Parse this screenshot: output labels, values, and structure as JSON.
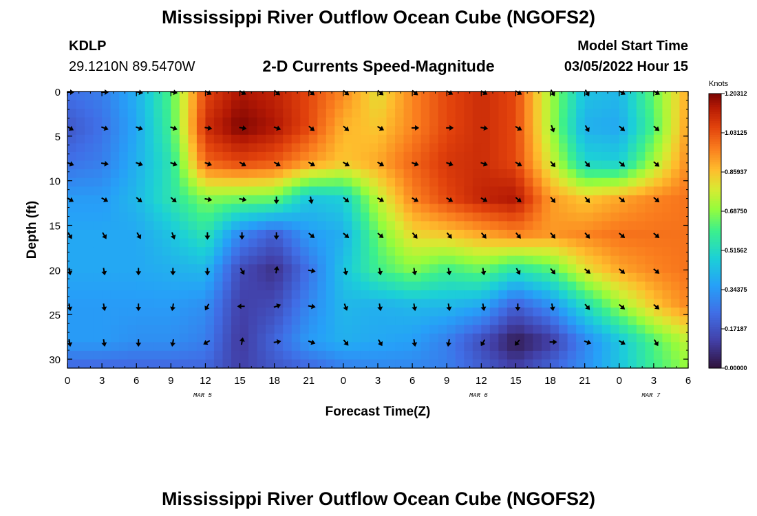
{
  "header": {
    "title": "Mississippi River Outflow Ocean Cube (NGOFS2)",
    "station": "KDLP",
    "coords": "29.1210N  89.5470W",
    "subtitle": "2-D Currents Speed-Magnitude",
    "model_start_label": "Model Start Time",
    "model_start_time": "03/05/2022 Hour 15"
  },
  "footer": {
    "title": "Mississippi River Outflow Ocean Cube (NGOFS2)"
  },
  "chart_data": {
    "type": "heatmap",
    "xlabel": "Forecast Time(Z)",
    "ylabel": "Depth (ft)",
    "x_tick_labels": [
      "0",
      "3",
      "6",
      "9",
      "12",
      "15",
      "18",
      "21",
      "0",
      "3",
      "6",
      "9",
      "12",
      "15",
      "18",
      "21",
      "0",
      "3",
      "6"
    ],
    "x_range_hours": [
      0,
      54
    ],
    "date_labels": [
      {
        "label": "MAR 5",
        "hour": 12
      },
      {
        "label": "MAR 6",
        "hour": 36
      },
      {
        "label": "MAR 7",
        "hour": 51
      }
    ],
    "y_ticks": [
      0,
      5,
      10,
      15,
      20,
      25,
      30
    ],
    "ylim": [
      0,
      31
    ],
    "y_inverted": true,
    "colorbar": {
      "label": "Knots",
      "min": 0.0,
      "max": 1.2031,
      "tick_labels": [
        "0.00000",
        "0.17187",
        "0.34375",
        "0.51562",
        "0.68750",
        "0.85937",
        "1.03125",
        "1.20312"
      ],
      "tick_values": [
        0.0,
        0.17187,
        0.34375,
        0.51562,
        0.6875,
        0.85937,
        1.03125,
        1.20312
      ]
    },
    "speed_grid": {
      "x_hours": [
        0,
        3,
        6,
        9,
        12,
        15,
        18,
        21,
        24,
        27,
        30,
        33,
        36,
        39,
        42,
        45,
        48,
        51,
        54
      ],
      "depths": [
        0,
        4,
        8,
        12,
        16,
        20,
        24,
        28,
        31
      ],
      "values": [
        [
          0.25,
          0.28,
          0.4,
          0.62,
          1.05,
          1.15,
          1.12,
          1.05,
          0.95,
          0.8,
          0.95,
          1.05,
          1.1,
          1.05,
          0.72,
          0.45,
          0.42,
          0.65,
          0.9
        ],
        [
          0.18,
          0.25,
          0.38,
          0.6,
          1.1,
          1.2,
          1.15,
          1.05,
          0.88,
          0.85,
          0.95,
          1.05,
          1.1,
          1.05,
          0.72,
          0.4,
          0.38,
          0.62,
          0.92
        ],
        [
          0.25,
          0.28,
          0.4,
          0.55,
          1.0,
          1.05,
          1.02,
          0.92,
          0.85,
          0.9,
          1.0,
          1.08,
          1.1,
          1.05,
          0.78,
          0.5,
          0.48,
          0.72,
          0.95
        ],
        [
          0.35,
          0.35,
          0.42,
          0.55,
          0.68,
          0.66,
          0.65,
          0.45,
          0.48,
          0.75,
          0.95,
          1.05,
          1.12,
          1.15,
          0.92,
          0.85,
          0.9,
          0.95,
          0.98
        ],
        [
          0.38,
          0.38,
          0.38,
          0.45,
          0.55,
          0.3,
          0.2,
          0.35,
          0.4,
          0.65,
          0.82,
          0.85,
          0.9,
          0.95,
          0.92,
          0.95,
          0.98,
          0.98,
          0.98
        ],
        [
          0.38,
          0.38,
          0.38,
          0.4,
          0.42,
          0.15,
          0.08,
          0.25,
          0.45,
          0.6,
          0.68,
          0.6,
          0.65,
          0.55,
          0.62,
          0.8,
          0.9,
          0.95,
          0.98
        ],
        [
          0.35,
          0.35,
          0.35,
          0.35,
          0.32,
          0.12,
          0.15,
          0.3,
          0.42,
          0.4,
          0.42,
          0.42,
          0.38,
          0.2,
          0.32,
          0.52,
          0.7,
          0.85,
          0.95
        ],
        [
          0.35,
          0.35,
          0.32,
          0.32,
          0.28,
          0.1,
          0.22,
          0.35,
          0.4,
          0.38,
          0.36,
          0.28,
          0.15,
          0.02,
          0.1,
          0.3,
          0.45,
          0.62,
          0.75
        ],
        [
          0.22,
          0.22,
          0.22,
          0.22,
          0.22,
          0.12,
          0.18,
          0.22,
          0.28,
          0.3,
          0.3,
          0.28,
          0.2,
          0.12,
          0.22,
          0.32,
          0.45,
          0.6,
          0.7
        ]
      ]
    },
    "vectors": {
      "x_hours": [
        0,
        3,
        6,
        9,
        12,
        15,
        18,
        21,
        24,
        27,
        30,
        33,
        36,
        39,
        42,
        45,
        48,
        51
      ],
      "depths": [
        0,
        4,
        8,
        12,
        16,
        20,
        24,
        28
      ],
      "directions_deg": [
        [
          0,
          0,
          10,
          10,
          30,
          30,
          40,
          40,
          40,
          40,
          40,
          30,
          30,
          30,
          60,
          60,
          30,
          30
        ],
        [
          30,
          20,
          20,
          20,
          10,
          10,
          20,
          40,
          40,
          30,
          0,
          0,
          10,
          30,
          70,
          60,
          40,
          40
        ],
        [
          20,
          10,
          20,
          20,
          20,
          30,
          30,
          30,
          30,
          30,
          20,
          20,
          20,
          30,
          50,
          50,
          40,
          40
        ],
        [
          30,
          30,
          40,
          40,
          10,
          10,
          90,
          80,
          40,
          30,
          30,
          30,
          30,
          40,
          50,
          50,
          40,
          40
        ],
        [
          60,
          60,
          60,
          70,
          90,
          90,
          90,
          40,
          40,
          40,
          50,
          50,
          50,
          50,
          50,
          50,
          40,
          40
        ],
        [
          80,
          80,
          90,
          90,
          90,
          60,
          280,
          10,
          80,
          80,
          80,
          80,
          80,
          60,
          50,
          40,
          40,
          40
        ],
        [
          80,
          80,
          90,
          100,
          120,
          180,
          340,
          10,
          70,
          80,
          80,
          80,
          80,
          90,
          80,
          50,
          40,
          40
        ],
        [
          80,
          80,
          90,
          100,
          150,
          280,
          350,
          20,
          50,
          60,
          80,
          100,
          120,
          130,
          0,
          20,
          30,
          60
        ]
      ]
    }
  }
}
